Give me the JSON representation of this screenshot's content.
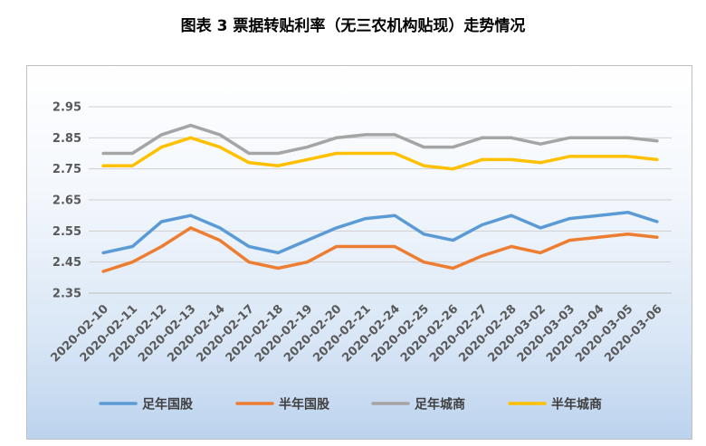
{
  "chart_data": {
    "type": "line",
    "title": "图表 3 票据转贴利率（无三农机构贴现）走势情况",
    "categories": [
      "2020-02-10",
      "2020-02-11",
      "2020-02-12",
      "2020-02-13",
      "2020-02-14",
      "2020-02-17",
      "2020-02-18",
      "2020-02-19",
      "2020-02-20",
      "2020-02-21",
      "2020-02-24",
      "2020-02-25",
      "2020-02-26",
      "2020-02-27",
      "2020-02-28",
      "2020-03-02",
      "2020-03-03",
      "2020-03-04",
      "2020-03-05",
      "2020-03-06"
    ],
    "yticks": [
      "2.35",
      "2.45",
      "2.55",
      "2.65",
      "2.75",
      "2.85",
      "2.95"
    ],
    "ylim": [
      2.35,
      2.95
    ],
    "grid": true,
    "legend_position": "bottom",
    "series": [
      {
        "name": "足年国股",
        "color": "#5B9BD5",
        "values": [
          2.48,
          2.5,
          2.58,
          2.6,
          2.56,
          2.5,
          2.48,
          2.52,
          2.56,
          2.59,
          2.6,
          2.54,
          2.52,
          2.57,
          2.6,
          2.56,
          2.59,
          2.6,
          2.61,
          2.58
        ]
      },
      {
        "name": "半年国股",
        "color": "#ED7D31",
        "values": [
          2.42,
          2.45,
          2.5,
          2.56,
          2.52,
          2.45,
          2.43,
          2.45,
          2.5,
          2.5,
          2.5,
          2.45,
          2.43,
          2.47,
          2.5,
          2.48,
          2.52,
          2.53,
          2.54,
          2.53
        ]
      },
      {
        "name": "足年城商",
        "color": "#A5A5A5",
        "values": [
          2.8,
          2.8,
          2.86,
          2.89,
          2.86,
          2.8,
          2.8,
          2.82,
          2.85,
          2.86,
          2.86,
          2.82,
          2.82,
          2.85,
          2.85,
          2.83,
          2.85,
          2.85,
          2.85,
          2.84
        ]
      },
      {
        "name": "半年城商",
        "color": "#FFC000",
        "values": [
          2.76,
          2.76,
          2.82,
          2.85,
          2.82,
          2.77,
          2.76,
          2.78,
          2.8,
          2.8,
          2.8,
          2.76,
          2.75,
          2.78,
          2.78,
          2.77,
          2.79,
          2.79,
          2.79,
          2.78
        ]
      }
    ]
  }
}
